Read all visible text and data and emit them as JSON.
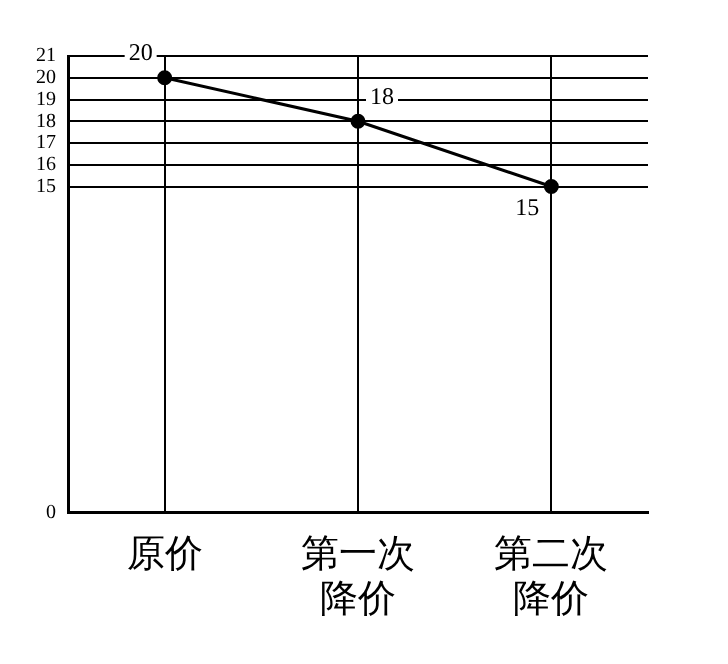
{
  "chart_data": {
    "type": "line",
    "categories": [
      "原价",
      "第一次降价",
      "第二次降价"
    ],
    "values": [
      20,
      18,
      15
    ],
    "color": "#000000",
    "ylim": [
      0,
      21
    ],
    "yticks": [
      0,
      15,
      16,
      17,
      18,
      19,
      20,
      21
    ],
    "grid": true,
    "data_labels": true,
    "marker": "circle",
    "line_style": "solid",
    "legend": false
  }
}
